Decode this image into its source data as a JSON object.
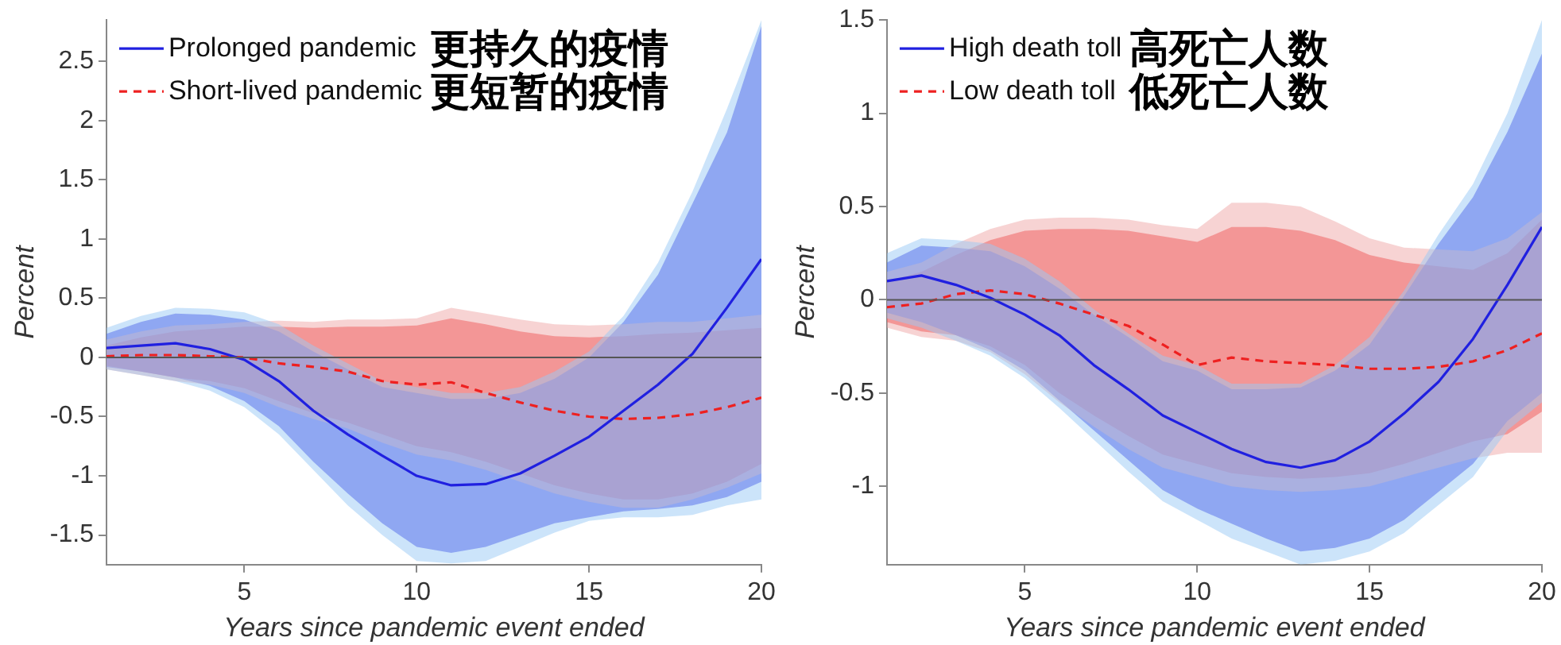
{
  "chart_data": [
    {
      "type": "line",
      "xlabel": "Years since pandemic event ended",
      "ylabel": "Percent",
      "x": [
        1,
        2,
        3,
        4,
        5,
        6,
        7,
        8,
        9,
        10,
        11,
        12,
        13,
        14,
        15,
        16,
        17,
        18,
        19,
        20
      ],
      "xlim": [
        1,
        20
      ],
      "xticks": [
        5,
        10,
        15,
        20
      ],
      "ylim": [
        -1.75,
        2.85
      ],
      "yticks": [
        -1.5,
        -1,
        -0.5,
        0,
        0.5,
        1,
        1.5,
        2,
        2.5
      ],
      "grid": false,
      "legend": "top left",
      "annotations": [
        "更持久的疫情",
        "更短暂的疫情"
      ],
      "ref_lines": [
        {
          "axis": "y",
          "value": 0,
          "color": "#555555"
        }
      ],
      "series": [
        {
          "color": "#99c9f5",
          "values": [
            null,
            null,
            null,
            null,
            null,
            null,
            null,
            null,
            null,
            null,
            null,
            null,
            null,
            null,
            null,
            null,
            null,
            null,
            null,
            null
          ],
          "lower": [
            -0.1,
            -0.15,
            -0.2,
            -0.28,
            -0.42,
            -0.65,
            -0.95,
            -1.25,
            -1.5,
            -1.72,
            -1.74,
            -1.72,
            -1.6,
            -1.48,
            -1.38,
            -1.35,
            -1.35,
            -1.33,
            -1.25,
            -1.2
          ],
          "upper": [
            0.25,
            0.35,
            0.42,
            0.41,
            0.38,
            0.28,
            0.1,
            -0.05,
            -0.2,
            -0.25,
            -0.3,
            -0.3,
            -0.25,
            -0.12,
            0.05,
            0.35,
            0.8,
            1.4,
            2.1,
            2.85
          ]
        },
        {
          "color": "#f0a8a8",
          "values": [
            null,
            null,
            null,
            null,
            null,
            null,
            null,
            null,
            null,
            null,
            null,
            null,
            null,
            null,
            null,
            null,
            null,
            null,
            null,
            null
          ],
          "lower": [
            -0.1,
            -0.15,
            -0.2,
            -0.23,
            -0.3,
            -0.42,
            -0.52,
            -0.6,
            -0.72,
            -0.82,
            -0.87,
            -0.95,
            -1.05,
            -1.15,
            -1.22,
            -1.27,
            -1.27,
            -1.2,
            -1.1,
            -0.98
          ],
          "upper": [
            0.15,
            0.22,
            0.27,
            0.28,
            0.3,
            0.31,
            0.3,
            0.32,
            0.32,
            0.33,
            0.42,
            0.37,
            0.32,
            0.28,
            0.27,
            0.28,
            0.3,
            0.3,
            0.33,
            0.36
          ]
        },
        {
          "name": "Prolonged pandemic",
          "color": "#2020e0",
          "line_style": "solid",
          "values": [
            0.08,
            0.1,
            0.12,
            0.07,
            -0.02,
            -0.2,
            -0.45,
            -0.65,
            -0.83,
            -1.0,
            -1.08,
            -1.07,
            -0.98,
            -0.83,
            -0.67,
            -0.45,
            -0.23,
            0.03,
            0.42,
            0.83
          ],
          "lower": [
            -0.08,
            -0.12,
            -0.17,
            -0.24,
            -0.37,
            -0.58,
            -0.88,
            -1.15,
            -1.4,
            -1.6,
            -1.65,
            -1.6,
            -1.5,
            -1.4,
            -1.35,
            -1.3,
            -1.28,
            -1.25,
            -1.18,
            -1.05
          ],
          "upper": [
            0.2,
            0.3,
            0.37,
            0.36,
            0.32,
            0.22,
            0.05,
            -0.1,
            -0.25,
            -0.3,
            -0.35,
            -0.35,
            -0.3,
            -0.18,
            0,
            0.3,
            0.7,
            1.3,
            1.9,
            2.8
          ]
        },
        {
          "name": "Short-lived pandemic",
          "color": "#ee2020",
          "line_style": "dashed",
          "values": [
            0.01,
            0.02,
            0.02,
            0.01,
            0.0,
            -0.05,
            -0.08,
            -0.12,
            -0.2,
            -0.23,
            -0.21,
            -0.3,
            -0.38,
            -0.45,
            -0.5,
            -0.52,
            -0.51,
            -0.48,
            -0.42,
            -0.34
          ],
          "lower": [
            -0.07,
            -0.12,
            -0.17,
            -0.2,
            -0.26,
            -0.37,
            -0.47,
            -0.55,
            -0.65,
            -0.75,
            -0.8,
            -0.88,
            -0.98,
            -1.08,
            -1.15,
            -1.2,
            -1.2,
            -1.15,
            -1.05,
            -0.9
          ],
          "upper": [
            0.1,
            0.17,
            0.22,
            0.24,
            0.26,
            0.26,
            0.25,
            0.26,
            0.26,
            0.27,
            0.33,
            0.28,
            0.22,
            0.18,
            0.17,
            0.18,
            0.2,
            0.21,
            0.23,
            0.25
          ]
        }
      ]
    },
    {
      "type": "line",
      "xlabel": "Years since pandemic event ended",
      "ylabel": "Percent",
      "x": [
        1,
        2,
        3,
        4,
        5,
        6,
        7,
        8,
        9,
        10,
        11,
        12,
        13,
        14,
        15,
        16,
        17,
        18,
        19,
        20
      ],
      "xlim": [
        1,
        20
      ],
      "xticks": [
        5,
        10,
        15,
        20
      ],
      "ylim": [
        -1.42,
        1.5
      ],
      "yticks": [
        -1,
        -0.5,
        0,
        0.5,
        1,
        1.5
      ],
      "grid": false,
      "legend": "top left",
      "annotations": [
        "高死亡人数",
        "低死亡人数"
      ],
      "ref_lines": [
        {
          "axis": "y",
          "value": 0,
          "color": "#555555"
        }
      ],
      "series": [
        {
          "color": "#99c9f5",
          "values": [
            null,
            null,
            null,
            null,
            null,
            null,
            null,
            null,
            null,
            null,
            null,
            null,
            null,
            null,
            null,
            null,
            null,
            null,
            null,
            null
          ],
          "lower": [
            -0.1,
            -0.15,
            -0.22,
            -0.3,
            -0.42,
            -0.58,
            -0.75,
            -0.92,
            -1.08,
            -1.18,
            -1.28,
            -1.35,
            -1.42,
            -1.4,
            -1.35,
            -1.25,
            -1.1,
            -0.95,
            -0.7,
            -0.55
          ],
          "upper": [
            0.25,
            0.33,
            0.32,
            0.3,
            0.22,
            0.1,
            -0.05,
            -0.18,
            -0.3,
            -0.35,
            -0.45,
            -0.45,
            -0.45,
            -0.35,
            -0.2,
            0.05,
            0.35,
            0.62,
            1.0,
            1.5
          ]
        },
        {
          "color": "#f0a8a8",
          "values": [
            null,
            null,
            null,
            null,
            null,
            null,
            null,
            null,
            null,
            null,
            null,
            null,
            null,
            null,
            null,
            null,
            null,
            null,
            null,
            null
          ],
          "lower": [
            -0.15,
            -0.2,
            -0.22,
            -0.28,
            -0.4,
            -0.55,
            -0.68,
            -0.8,
            -0.9,
            -0.95,
            -1.0,
            -1.02,
            -1.03,
            -1.02,
            -1.0,
            -0.95,
            -0.9,
            -0.85,
            -0.82,
            -0.82
          ],
          "upper": [
            0.15,
            0.2,
            0.3,
            0.38,
            0.43,
            0.44,
            0.44,
            0.43,
            0.4,
            0.38,
            0.52,
            0.52,
            0.5,
            0.42,
            0.33,
            0.28,
            0.27,
            0.26,
            0.33,
            0.47
          ]
        },
        {
          "name": "High death toll",
          "color": "#2020e0",
          "line_style": "solid",
          "values": [
            0.1,
            0.13,
            0.08,
            0.01,
            -0.08,
            -0.19,
            -0.35,
            -0.48,
            -0.62,
            -0.71,
            -0.8,
            -0.87,
            -0.9,
            -0.86,
            -0.76,
            -0.61,
            -0.44,
            -0.21,
            0.08,
            0.39
          ],
          "lower": [
            -0.07,
            -0.12,
            -0.19,
            -0.27,
            -0.38,
            -0.54,
            -0.7,
            -0.86,
            -1.02,
            -1.12,
            -1.2,
            -1.28,
            -1.35,
            -1.33,
            -1.28,
            -1.18,
            -1.03,
            -0.88,
            -0.65,
            -0.5
          ],
          "upper": [
            0.2,
            0.29,
            0.28,
            0.26,
            0.18,
            0.06,
            -0.08,
            -0.2,
            -0.33,
            -0.38,
            -0.48,
            -0.48,
            -0.47,
            -0.38,
            -0.24,
            0.02,
            0.3,
            0.55,
            0.9,
            1.32
          ]
        },
        {
          "name": "Low death toll",
          "color": "#ee2020",
          "line_style": "dashed",
          "values": [
            -0.04,
            -0.02,
            0.03,
            0.05,
            0.03,
            -0.02,
            -0.08,
            -0.14,
            -0.24,
            -0.35,
            -0.31,
            -0.33,
            -0.34,
            -0.35,
            -0.37,
            -0.37,
            -0.36,
            -0.33,
            -0.27,
            -0.18
          ],
          "lower": [
            -0.12,
            -0.17,
            -0.19,
            -0.25,
            -0.35,
            -0.5,
            -0.62,
            -0.73,
            -0.83,
            -0.88,
            -0.93,
            -0.95,
            -0.96,
            -0.95,
            -0.93,
            -0.88,
            -0.82,
            -0.76,
            -0.72,
            -0.6
          ],
          "upper": [
            0.1,
            0.15,
            0.24,
            0.32,
            0.37,
            0.38,
            0.38,
            0.37,
            0.34,
            0.31,
            0.39,
            0.39,
            0.37,
            0.32,
            0.24,
            0.2,
            0.18,
            0.16,
            0.25,
            0.43
          ]
        }
      ]
    }
  ]
}
